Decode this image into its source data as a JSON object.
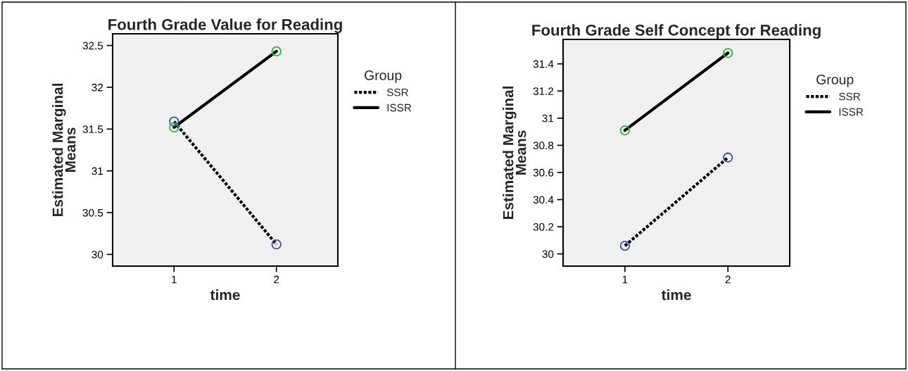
{
  "chart_data": [
    {
      "type": "line",
      "title": "Fourth Grade Value for Reading",
      "xlabel": "time",
      "ylabel": "Estimated Marginal\nMeans",
      "legend_title": "Group",
      "legend": "right",
      "marker": "circle",
      "categories": [
        "1",
        "2"
      ],
      "ylim": [
        29.86,
        32.64
      ],
      "yticks": [
        30,
        {
          "value": 30.5,
          "label": "30.5"
        },
        31,
        {
          "value": 31.5,
          "label": "31.5"
        },
        32,
        {
          "value": 32.5,
          "label": "32.5"
        }
      ],
      "grid": false,
      "series": [
        {
          "name": "SSR",
          "color": "#000000",
          "colors": [
            "#3b4fb5",
            "#3b4fb5"
          ],
          "line_style": "dotted",
          "values": [
            31.59,
            30.12
          ]
        },
        {
          "name": "ISSR",
          "color": "#000000",
          "colors": [
            "#2fb53a",
            "#2fb53a"
          ],
          "line_style": "solid",
          "values": [
            31.52,
            32.43
          ]
        }
      ]
    },
    {
      "type": "line",
      "title": "Fourth Grade Self Concept for Reading",
      "xlabel": "time",
      "ylabel": "Estimated Marginal\nMeans",
      "legend_title": "Group",
      "legend": "right",
      "marker": "circle",
      "categories": [
        "1",
        "2"
      ],
      "ylim": [
        29.91,
        31.58
      ],
      "yticks": [
        30,
        {
          "value": 30.2,
          "label": "30.2"
        },
        {
          "value": 30.4,
          "label": "30.4"
        },
        {
          "value": 30.6,
          "label": "30.6"
        },
        {
          "value": 30.8,
          "label": "30.8"
        },
        31,
        {
          "value": 31.2,
          "label": "31.2"
        },
        {
          "value": 31.4,
          "label": "31.4"
        }
      ],
      "grid": false,
      "series": [
        {
          "name": "SSR",
          "color": "#000000",
          "colors": [
            "#3b4fb5",
            "#3b4fb5"
          ],
          "line_style": "dotted",
          "values": [
            30.06,
            30.71
          ]
        },
        {
          "name": "ISSR",
          "color": "#000000",
          "colors": [
            "#2fb53a",
            "#2fb53a"
          ],
          "line_style": "solid",
          "values": [
            30.91,
            31.48
          ]
        }
      ]
    }
  ]
}
